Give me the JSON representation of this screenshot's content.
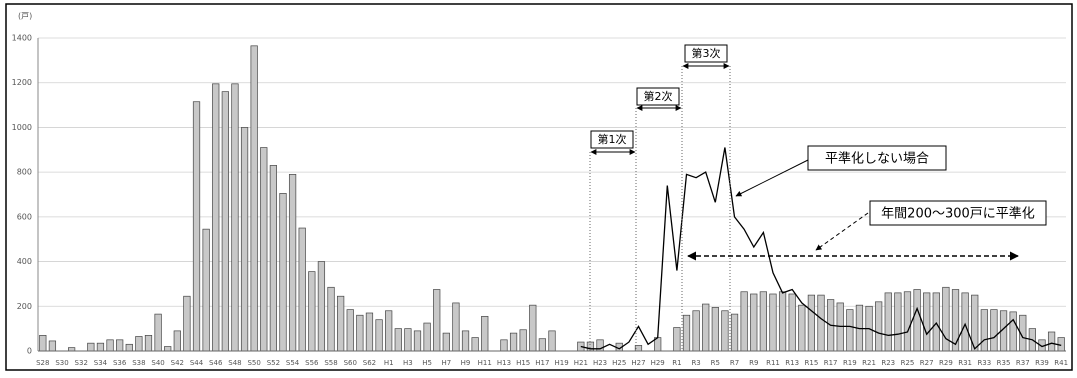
{
  "chart_data": {
    "type": "bar",
    "unit": "(戸)",
    "categories": [
      "S28",
      null,
      "S30",
      null,
      "S32",
      null,
      "S34",
      null,
      "S36",
      null,
      "S38",
      null,
      "S40",
      null,
      "S42",
      null,
      "S44",
      null,
      "S46",
      null,
      "S48",
      null,
      "S50",
      null,
      "S52",
      null,
      "S54",
      null,
      "S56",
      null,
      "S58",
      null,
      "S60",
      null,
      "S62",
      null,
      "H1",
      null,
      "H3",
      null,
      "H5",
      null,
      "H7",
      null,
      "H9",
      null,
      "H11",
      null,
      "H13",
      null,
      "H15",
      null,
      "H17",
      null,
      "H19",
      null,
      "H21",
      null,
      "H23",
      null,
      "H25",
      null,
      "H27",
      null,
      "H29",
      null,
      "R1",
      null,
      "R3",
      null,
      "R5",
      null,
      "R7",
      null,
      "R9",
      null,
      "R11",
      null,
      "R13",
      null,
      "R15",
      null,
      "R17",
      null,
      "R19",
      null,
      "R21",
      null,
      "R23",
      null,
      "R25",
      null,
      "R27",
      null,
      "R29",
      null,
      "R31",
      null,
      "R33",
      null,
      "R35",
      null,
      "R37",
      null,
      "R39",
      null,
      "R41"
    ],
    "series": [
      {
        "type": "bar",
        "color": "#c8c8c8",
        "values": [
          70,
          45,
          0,
          15,
          0,
          35,
          35,
          50,
          50,
          30,
          65,
          70,
          165,
          20,
          90,
          245,
          1115,
          545,
          1195,
          1160,
          1195,
          1000,
          1365,
          910,
          830,
          705,
          790,
          550,
          355,
          400,
          285,
          245,
          185,
          160,
          170,
          140,
          180,
          100,
          100,
          90,
          125,
          275,
          80,
          215,
          90,
          60,
          155,
          0,
          50,
          80,
          95,
          205,
          55,
          90,
          0,
          0,
          40,
          40,
          50,
          0,
          35,
          0,
          25,
          0,
          60,
          0,
          105,
          160,
          180,
          210,
          195,
          180,
          165,
          265,
          255,
          265,
          255,
          265,
          255,
          205,
          250,
          250,
          230,
          215,
          185,
          205,
          200,
          220,
          260,
          260,
          265,
          275,
          260,
          260,
          285,
          275,
          260,
          250,
          185,
          185,
          180,
          175,
          160,
          100,
          50,
          85,
          60
        ]
      },
      {
        "type": "line",
        "name": "平準化しない場合",
        "color": "#000000",
        "values": [
          null,
          null,
          null,
          null,
          null,
          null,
          null,
          null,
          null,
          null,
          null,
          null,
          null,
          null,
          null,
          null,
          null,
          null,
          null,
          null,
          null,
          null,
          null,
          null,
          null,
          null,
          null,
          null,
          null,
          null,
          null,
          null,
          null,
          null,
          null,
          null,
          null,
          null,
          null,
          null,
          null,
          null,
          null,
          null,
          null,
          null,
          null,
          null,
          null,
          null,
          null,
          null,
          null,
          null,
          null,
          null,
          20,
          10,
          10,
          30,
          10,
          40,
          110,
          30,
          60,
          740,
          360,
          790,
          775,
          800,
          665,
          910,
          600,
          545,
          465,
          530,
          350,
          260,
          275,
          215,
          180,
          145,
          115,
          110,
          110,
          100,
          100,
          80,
          70,
          75,
          85,
          190,
          75,
          125,
          55,
          30,
          120,
          10,
          50,
          60,
          100,
          140,
          60,
          50,
          20,
          35,
          25
        ]
      }
    ],
    "annotations": [
      "第1次",
      "第2次",
      "第3次",
      "年間200～300戸に平準化"
    ],
    "ylim": [
      0,
      1400
    ],
    "yticks": [
      0,
      200,
      400,
      600,
      800,
      1000,
      1200,
      1400
    ],
    "grid": true
  }
}
